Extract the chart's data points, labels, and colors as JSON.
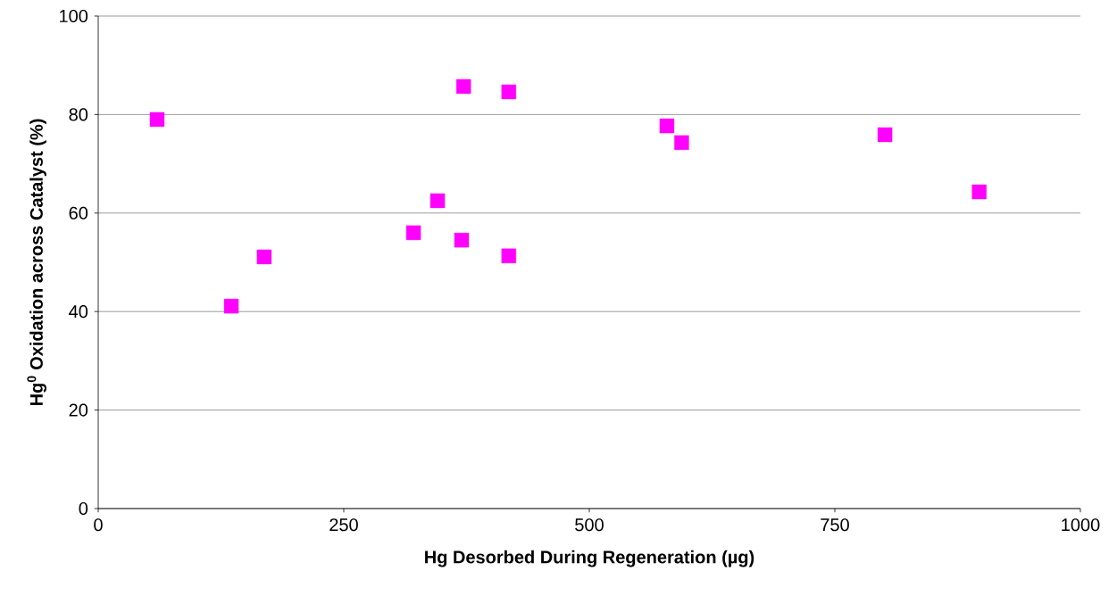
{
  "chart_data": {
    "type": "scatter",
    "xlabel": "Hg Desorbed During Regeneration (µg)",
    "ylabel": "Hg$^{0}$ Oxidation across Catalyst (%)",
    "x": [
      60,
      135.5,
      169,
      321,
      345.5,
      370,
      372,
      418,
      418,
      579,
      594,
      801,
      897
    ],
    "series": [
      {
        "color": "#ff00ff",
        "values": [
          79.0,
          41.1,
          51.1,
          56.0,
          62.5,
          54.5,
          85.7,
          84.6,
          51.3,
          77.7,
          74.3,
          75.9,
          64.3
        ]
      }
    ],
    "xlim": [
      0,
      1000
    ],
    "ylim": [
      0,
      100
    ],
    "xticks": [
      0,
      250,
      500,
      750,
      1000
    ],
    "yticks": [
      0,
      20,
      40,
      60,
      80,
      100
    ],
    "grid": "y",
    "marker": "square"
  }
}
